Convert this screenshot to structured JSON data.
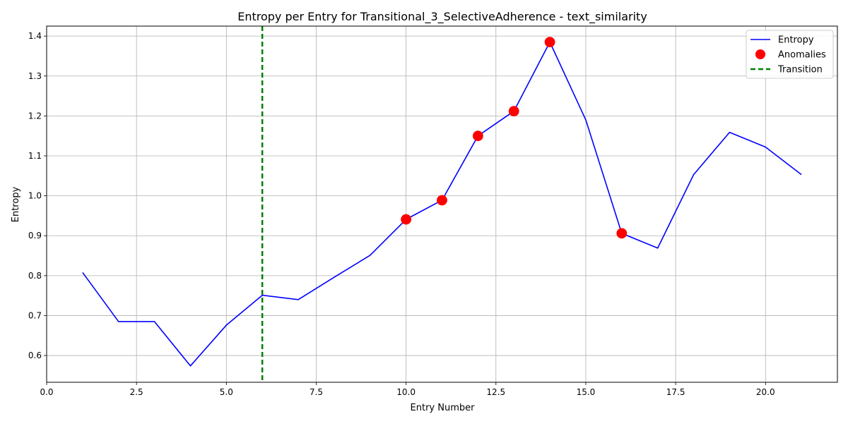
{
  "chart_data": {
    "type": "line",
    "title": "Entropy per Entry for Transitional_3_SelectiveAdherence - text_similarity",
    "xlabel": "Entry Number",
    "ylabel": "Entropy",
    "xlim": [
      0,
      22.0
    ],
    "ylim": [
      0.533,
      1.425
    ],
    "grid": true,
    "legend_position": "top-right",
    "x_ticks": [
      0.0,
      2.5,
      5.0,
      7.5,
      10.0,
      12.5,
      15.0,
      17.5,
      20.0
    ],
    "x_tick_labels": [
      "0.0",
      "2.5",
      "5.0",
      "7.5",
      "10.0",
      "12.5",
      "15.0",
      "17.5",
      "20.0"
    ],
    "y_ticks": [
      0.6,
      0.7,
      0.8,
      0.9,
      1.0,
      1.1,
      1.2,
      1.3,
      1.4
    ],
    "y_tick_labels": [
      "0.6",
      "0.7",
      "0.8",
      "0.9",
      "1.0",
      "1.1",
      "1.2",
      "1.3",
      "1.4"
    ],
    "series": [
      {
        "name": "Entropy",
        "kind": "line",
        "color": "#0000ff",
        "x": [
          1,
          2,
          3,
          4,
          5,
          6,
          7,
          8,
          9,
          10,
          11,
          12,
          13,
          14,
          15,
          16,
          17,
          18,
          19,
          20,
          21
        ],
        "y": [
          0.808,
          0.685,
          0.685,
          0.574,
          0.676,
          0.751,
          0.74,
          0.796,
          0.851,
          0.941,
          0.989,
          1.15,
          1.212,
          1.385,
          1.19,
          0.906,
          0.869,
          1.053,
          1.159,
          1.122,
          1.053
        ]
      },
      {
        "name": "Anomalies",
        "kind": "scatter",
        "color": "#ff0000",
        "x": [
          10,
          11,
          12,
          13,
          14,
          16
        ],
        "y": [
          0.941,
          0.989,
          1.15,
          1.212,
          1.385,
          0.906
        ]
      },
      {
        "name": "Transition",
        "kind": "vline",
        "color": "#008000",
        "x": [
          6
        ]
      }
    ]
  }
}
